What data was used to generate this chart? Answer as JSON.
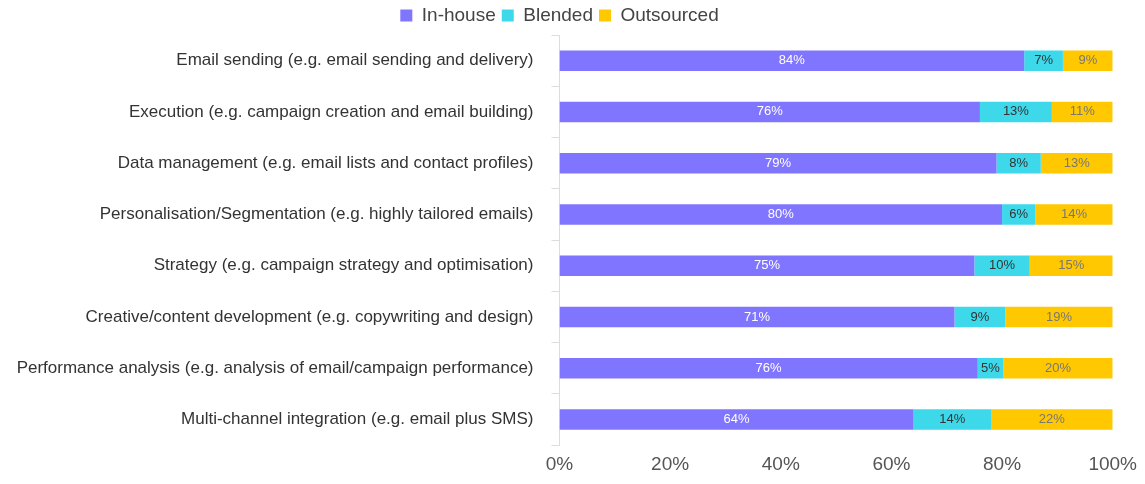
{
  "chart_data": {
    "type": "bar",
    "orientation": "horizontal",
    "stacked": true,
    "categories": [
      "Email sending (e.g. email sending and delivery)",
      "Execution (e.g. campaign creation and email building)",
      "Data management (e.g. email lists and contact profiles)",
      "Personalisation/Segmentation (e.g. highly tailored emails)",
      "Strategy (e.g. campaign strategy and optimisation)",
      "Creative/content development (e.g. copywriting and design)",
      "Performance analysis (e.g. analysis of email/campaign performance)",
      "Multi-channel integration (e.g. email plus SMS)"
    ],
    "series": [
      {
        "name": "In-house",
        "color": "#8075ff",
        "values": [
          84,
          76,
          79,
          80,
          75,
          71.4,
          75.6,
          64
        ],
        "value_labels": [
          "84%",
          "76%",
          "79%",
          "80%",
          "75%",
          "71%",
          "76%",
          "64%"
        ]
      },
      {
        "name": "Blended",
        "color": "#3dd9eb",
        "values": [
          7,
          13,
          8,
          6,
          10,
          9.2,
          4.6,
          14
        ],
        "value_labels": [
          "7%",
          "13%",
          "8%",
          "6%",
          "10%",
          "9%",
          "5%",
          "14%"
        ]
      },
      {
        "name": "Outsourced",
        "color": "#ffc800",
        "values": [
          9,
          11,
          13,
          14,
          15,
          19.4,
          19.8,
          22
        ],
        "value_labels": [
          "9%",
          "11%",
          "13%",
          "14%",
          "15%",
          "19%",
          "20%",
          "22%"
        ]
      }
    ],
    "xlim": [
      0,
      100
    ],
    "xticks": [
      {
        "value": 0,
        "label": "0%"
      },
      {
        "value": 20,
        "label": "20%"
      },
      {
        "value": 40,
        "label": "40%"
      },
      {
        "value": 60,
        "label": "60%"
      },
      {
        "value": 80,
        "label": "80%"
      },
      {
        "value": 100,
        "label": "100%"
      }
    ],
    "grid": false,
    "legend": "top"
  }
}
